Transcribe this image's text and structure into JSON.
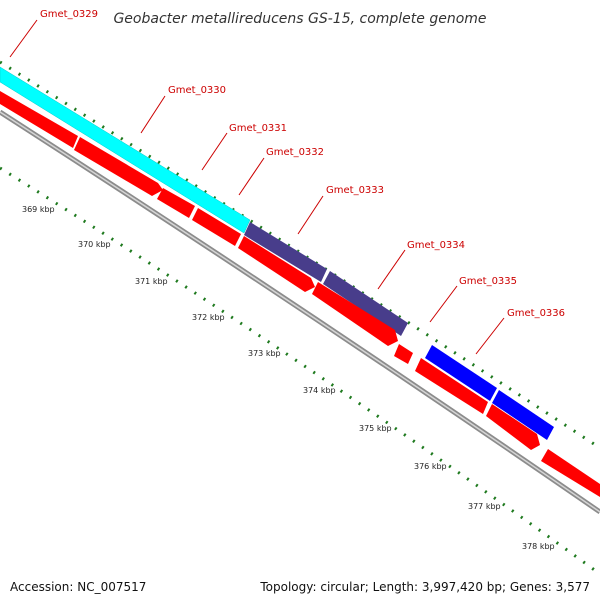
{
  "title": "Geobacter metallireducens GS-15, complete genome",
  "footer": {
    "accession": "Accession: NC_007517",
    "info": "Topology: circular; Length: 3,997,420 bp; Genes: 3,577"
  },
  "colors": {
    "background": "#ffffff",
    "cds_forward_red": "#ff0000",
    "cyan_feature": "#00ffff",
    "slate_feature": "#483d8b",
    "blue_feature": "#0000ff",
    "backbone_gray": "#8c8c8c",
    "tick_green": "#1f7a1f",
    "label_red": "#cc0000"
  },
  "gene_labels": [
    {
      "name": "Gmet_0329"
    },
    {
      "name": "Gmet_0330"
    },
    {
      "name": "Gmet_0331"
    },
    {
      "name": "Gmet_0332"
    },
    {
      "name": "Gmet_0333"
    },
    {
      "name": "Gmet_0334"
    },
    {
      "name": "Gmet_0335"
    },
    {
      "name": "Gmet_0336"
    }
  ],
  "kbp_labels": [
    "369 kbp",
    "370 kbp",
    "371 kbp",
    "372 kbp",
    "373 kbp",
    "374 kbp",
    "375 kbp",
    "376 kbp",
    "377 kbp",
    "378 kbp"
  ]
}
